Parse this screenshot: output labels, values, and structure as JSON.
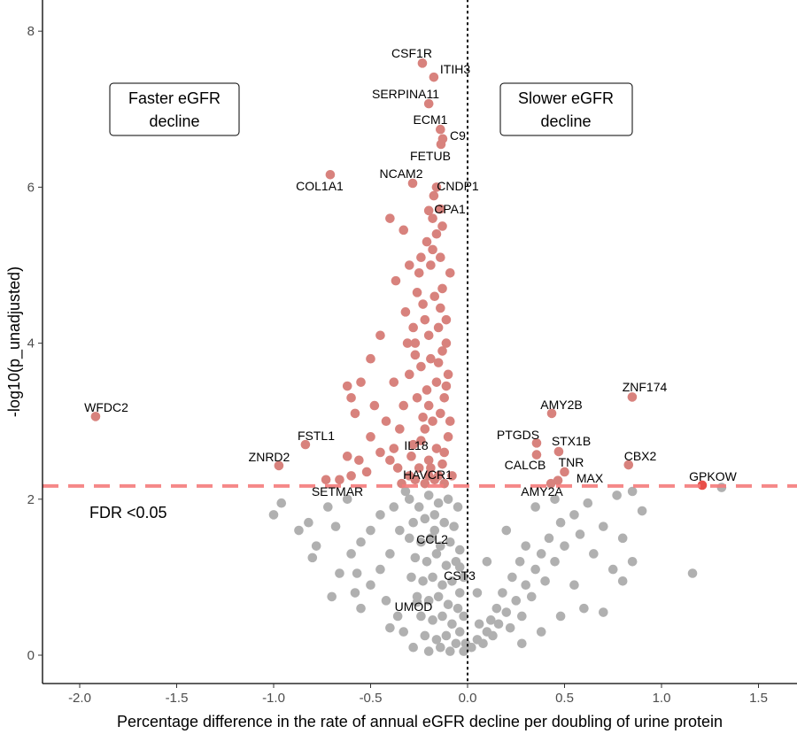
{
  "chart_data": {
    "type": "scatter",
    "title": "",
    "xlabel": "Percentage difference in the rate of annual eGFR decline per doubling of urine protein",
    "ylabel": "-log10(p_unadjusted)",
    "xlim": [
      -2.2,
      1.7
    ],
    "ylim": [
      -0.37,
      8.4
    ],
    "xticks": [
      -2.0,
      -1.5,
      -1.0,
      -0.5,
      0.0,
      0.5,
      1.0,
      1.5
    ],
    "xtick_labels": [
      "-2.0",
      "-1.5",
      "-1.0",
      "-0.5",
      "0.0",
      "0.5",
      "1.0",
      "1.5"
    ],
    "yticks": [
      0,
      2,
      4,
      6,
      8
    ],
    "ytick_labels": [
      "0",
      "2",
      "4",
      "6",
      "8"
    ],
    "grid": false,
    "threshold": {
      "y": 2.17,
      "label": "FDR <0.05",
      "color": "#f47c7c"
    },
    "annotations": {
      "left": [
        "Faster eGFR",
        "decline"
      ],
      "right": [
        "Slower eGFR",
        "decline"
      ]
    },
    "colors": {
      "significant": "#d8827d",
      "nonsignificant": "#b0b0b0",
      "highlight": "#e8504a"
    },
    "labeled_points": [
      {
        "gene": "CSF1R",
        "x": -0.233,
        "y": 7.59,
        "sig": true
      },
      {
        "gene": "ITIH3",
        "x": -0.174,
        "y": 7.41,
        "sig": true
      },
      {
        "gene": "SERPINA11",
        "x": -0.2,
        "y": 7.07,
        "sig": true
      },
      {
        "gene": "ECM1",
        "x": -0.14,
        "y": 6.74,
        "sig": true
      },
      {
        "gene": "C9",
        "x": -0.128,
        "y": 6.62,
        "sig": true
      },
      {
        "gene": "FETUB",
        "x": -0.137,
        "y": 6.55,
        "sig": true
      },
      {
        "gene": "COL1A1",
        "x": -0.708,
        "y": 6.16,
        "sig": true
      },
      {
        "gene": "NCAM2",
        "x": -0.283,
        "y": 6.05,
        "sig": true
      },
      {
        "gene": "CNDP1",
        "x": -0.174,
        "y": 5.89,
        "sig": true
      },
      {
        "gene": "CPA1",
        "x": -0.14,
        "y": 5.72,
        "sig": true
      },
      {
        "gene": "WFDC2",
        "x": -1.918,
        "y": 3.06,
        "sig": true
      },
      {
        "gene": "ZNF174",
        "x": 0.849,
        "y": 3.31,
        "sig": true
      },
      {
        "gene": "AMY2B",
        "x": 0.434,
        "y": 3.1,
        "sig": true
      },
      {
        "gene": "FSTL1",
        "x": -0.836,
        "y": 2.7,
        "sig": true
      },
      {
        "gene": "PTGDS",
        "x": 0.356,
        "y": 2.72,
        "sig": true
      },
      {
        "gene": "STX1B",
        "x": 0.47,
        "y": 2.61,
        "sig": true
      },
      {
        "gene": "CALCB",
        "x": 0.356,
        "y": 2.57,
        "sig": true
      },
      {
        "gene": "TNR",
        "x": 0.5,
        "y": 2.35,
        "sig": true
      },
      {
        "gene": "MAX",
        "x": 0.466,
        "y": 2.24,
        "sig": true
      },
      {
        "gene": "AMY2A",
        "x": 0.43,
        "y": 2.2,
        "sig": true
      },
      {
        "gene": "CBX2",
        "x": 0.83,
        "y": 2.44,
        "sig": true
      },
      {
        "gene": "GPKOW",
        "x": 1.21,
        "y": 2.18,
        "sig": true
      },
      {
        "gene": "ZNRD2",
        "x": -0.973,
        "y": 2.43,
        "sig": true
      },
      {
        "gene": "SETMAR",
        "x": -0.73,
        "y": 2.25,
        "sig": true
      },
      {
        "gene": "IL18",
        "x": -0.38,
        "y": 2.65,
        "sig": true
      },
      {
        "gene": "HAVCR1",
        "x": -0.2,
        "y": 2.3,
        "sig": true
      },
      {
        "gene": "CCL2",
        "x": -0.17,
        "y": 1.6,
        "sig": false
      },
      {
        "gene": "CST3",
        "x": -0.04,
        "y": 1.13,
        "sig": false
      },
      {
        "gene": "UMOD",
        "x": -0.26,
        "y": 0.68,
        "sig": false
      }
    ],
    "significant_points": [
      [
        -0.3,
        2.3
      ],
      [
        -0.25,
        2.4
      ],
      [
        -0.2,
        2.5
      ],
      [
        -0.15,
        2.3
      ],
      [
        -0.12,
        2.6
      ],
      [
        -0.28,
        2.7
      ],
      [
        -0.22,
        2.9
      ],
      [
        -0.18,
        3.0
      ],
      [
        -0.14,
        3.1
      ],
      [
        -0.1,
        2.8
      ],
      [
        -0.33,
        3.2
      ],
      [
        -0.26,
        3.3
      ],
      [
        -0.21,
        3.4
      ],
      [
        -0.16,
        3.5
      ],
      [
        -0.12,
        3.3
      ],
      [
        -0.3,
        3.6
      ],
      [
        -0.24,
        3.7
      ],
      [
        -0.19,
        3.8
      ],
      [
        -0.13,
        3.9
      ],
      [
        -0.1,
        3.6
      ],
      [
        -0.27,
        4.0
      ],
      [
        -0.2,
        4.1
      ],
      [
        -0.15,
        4.2
      ],
      [
        -0.11,
        4.3
      ],
      [
        -0.32,
        4.4
      ],
      [
        -0.23,
        4.5
      ],
      [
        -0.17,
        4.6
      ],
      [
        -0.13,
        4.7
      ],
      [
        -0.25,
        4.9
      ],
      [
        -0.19,
        5.0
      ],
      [
        -0.14,
        5.1
      ],
      [
        -0.21,
        5.3
      ],
      [
        -0.16,
        5.4
      ],
      [
        -0.18,
        5.6
      ],
      [
        -0.13,
        5.5
      ],
      [
        -0.4,
        5.6
      ],
      [
        -0.33,
        5.45
      ],
      [
        -0.2,
        5.7
      ],
      [
        -0.45,
        4.1
      ],
      [
        -0.5,
        3.8
      ],
      [
        -0.55,
        3.5
      ],
      [
        -0.6,
        3.3
      ],
      [
        -0.62,
        3.45
      ],
      [
        -0.58,
        3.1
      ],
      [
        -0.48,
        3.2
      ],
      [
        -0.42,
        3.0
      ],
      [
        -0.5,
        2.8
      ],
      [
        -0.45,
        2.6
      ],
      [
        -0.4,
        2.5
      ],
      [
        -0.52,
        2.35
      ],
      [
        -0.6,
        2.3
      ],
      [
        -0.35,
        2.9
      ],
      [
        -0.37,
        4.8
      ],
      [
        -0.3,
        5.0
      ],
      [
        -0.28,
        4.2
      ],
      [
        -0.38,
        3.5
      ],
      [
        -0.22,
        2.2
      ],
      [
        -0.17,
        2.25
      ],
      [
        -0.12,
        2.2
      ],
      [
        -0.08,
        2.3
      ],
      [
        -0.09,
        3.0
      ],
      [
        -0.11,
        4.0
      ],
      [
        -0.09,
        4.9
      ],
      [
        -0.29,
        2.55
      ],
      [
        -0.34,
        2.2
      ],
      [
        -0.56,
        2.5
      ],
      [
        -0.66,
        2.25
      ],
      [
        -0.62,
        2.55
      ],
      [
        -0.2,
        3.2
      ],
      [
        -0.24,
        2.75
      ],
      [
        -0.16,
        2.65
      ],
      [
        -0.27,
        3.85
      ],
      [
        -0.14,
        4.45
      ],
      [
        -0.18,
        5.2
      ],
      [
        -0.22,
        4.3
      ],
      [
        -0.26,
        4.65
      ],
      [
        -0.15,
        3.75
      ],
      [
        -0.11,
        3.45
      ],
      [
        -0.23,
        3.05
      ],
      [
        -0.19,
        2.4
      ],
      [
        -0.13,
        2.45
      ],
      [
        -0.27,
        2.25
      ],
      [
        -0.36,
        2.4
      ],
      [
        -0.31,
        4.0
      ],
      [
        -0.24,
        5.1
      ],
      [
        -0.16,
        6.0
      ]
    ],
    "nonsignificant_points": [
      [
        -0.3,
        2.0
      ],
      [
        -0.25,
        1.9
      ],
      [
        -0.2,
        2.05
      ],
      [
        -0.15,
        1.95
      ],
      [
        -0.1,
        2.0
      ],
      [
        -0.05,
        1.9
      ],
      [
        -0.28,
        1.7
      ],
      [
        -0.22,
        1.75
      ],
      [
        -0.17,
        1.8
      ],
      [
        -0.12,
        1.7
      ],
      [
        -0.07,
        1.65
      ],
      [
        -0.3,
        1.5
      ],
      [
        -0.24,
        1.45
      ],
      [
        -0.19,
        1.5
      ],
      [
        -0.14,
        1.4
      ],
      [
        -0.09,
        1.45
      ],
      [
        -0.04,
        1.35
      ],
      [
        -0.27,
        1.25
      ],
      [
        -0.21,
        1.2
      ],
      [
        -0.16,
        1.3
      ],
      [
        -0.11,
        1.15
      ],
      [
        -0.06,
        1.2
      ],
      [
        -0.02,
        1.0
      ],
      [
        -0.29,
        1.0
      ],
      [
        -0.23,
        0.95
      ],
      [
        -0.18,
        1.0
      ],
      [
        -0.13,
        0.9
      ],
      [
        -0.08,
        0.95
      ],
      [
        -0.04,
        0.8
      ],
      [
        -0.26,
        0.75
      ],
      [
        -0.2,
        0.7
      ],
      [
        -0.15,
        0.75
      ],
      [
        -0.1,
        0.65
      ],
      [
        -0.05,
        0.6
      ],
      [
        -0.02,
        0.5
      ],
      [
        -0.24,
        0.5
      ],
      [
        -0.18,
        0.45
      ],
      [
        -0.13,
        0.5
      ],
      [
        -0.08,
        0.4
      ],
      [
        -0.04,
        0.3
      ],
      [
        -0.01,
        0.15
      ],
      [
        -0.22,
        0.25
      ],
      [
        -0.16,
        0.2
      ],
      [
        -0.11,
        0.25
      ],
      [
        -0.06,
        0.15
      ],
      [
        -0.02,
        0.05
      ],
      [
        -0.2,
        0.05
      ],
      [
        -0.14,
        0.1
      ],
      [
        -0.09,
        0.05
      ],
      [
        -0.35,
        1.6
      ],
      [
        -0.4,
        1.3
      ],
      [
        -0.45,
        1.1
      ],
      [
        -0.5,
        0.9
      ],
      [
        -0.42,
        0.7
      ],
      [
        -0.36,
        0.5
      ],
      [
        -0.33,
        0.3
      ],
      [
        -0.38,
        1.9
      ],
      [
        -0.45,
        1.8
      ],
      [
        -0.5,
        1.6
      ],
      [
        -0.55,
        1.45
      ],
      [
        -0.6,
        1.3
      ],
      [
        -0.68,
        1.65
      ],
      [
        -0.72,
        1.9
      ],
      [
        -0.78,
        1.4
      ],
      [
        -0.58,
        0.8
      ],
      [
        -0.55,
        0.6
      ],
      [
        -0.57,
        1.05
      ],
      [
        -0.62,
        2.0
      ],
      [
        -1.0,
        1.8
      ],
      [
        -0.96,
        1.95
      ],
      [
        -0.87,
        1.6
      ],
      [
        -0.82,
        1.7
      ],
      [
        -0.8,
        1.25
      ],
      [
        -0.66,
        1.05
      ],
      [
        -0.7,
        0.75
      ],
      [
        -0.32,
        2.1
      ],
      [
        -0.4,
        0.35
      ],
      [
        -0.28,
        0.1
      ],
      [
        0.02,
        0.1
      ],
      [
        0.05,
        0.2
      ],
      [
        0.08,
        0.15
      ],
      [
        0.1,
        0.3
      ],
      [
        0.13,
        0.25
      ],
      [
        0.06,
        0.4
      ],
      [
        0.12,
        0.45
      ],
      [
        0.16,
        0.4
      ],
      [
        0.2,
        0.55
      ],
      [
        0.15,
        0.6
      ],
      [
        0.22,
        0.35
      ],
      [
        0.25,
        0.7
      ],
      [
        0.18,
        0.8
      ],
      [
        0.28,
        0.5
      ],
      [
        0.3,
        0.9
      ],
      [
        0.23,
        1.0
      ],
      [
        0.33,
        0.75
      ],
      [
        0.35,
        1.1
      ],
      [
        0.27,
        1.2
      ],
      [
        0.4,
        0.95
      ],
      [
        0.38,
        1.3
      ],
      [
        0.3,
        1.4
      ],
      [
        0.42,
        1.5
      ],
      [
        0.45,
        1.2
      ],
      [
        0.48,
        1.7
      ],
      [
        0.5,
        1.4
      ],
      [
        0.55,
        1.8
      ],
      [
        0.58,
        1.55
      ],
      [
        0.62,
        1.95
      ],
      [
        0.65,
        1.3
      ],
      [
        0.7,
        1.65
      ],
      [
        0.75,
        1.1
      ],
      [
        0.8,
        1.5
      ],
      [
        0.85,
        1.2
      ],
      [
        0.9,
        1.85
      ],
      [
        0.35,
        1.9
      ],
      [
        0.45,
        2.0
      ],
      [
        0.2,
        1.6
      ],
      [
        0.1,
        1.2
      ],
      [
        0.05,
        0.8
      ],
      [
        0.55,
        0.9
      ],
      [
        0.6,
        0.6
      ],
      [
        0.7,
        0.55
      ],
      [
        0.8,
        0.95
      ],
      [
        0.85,
        2.1
      ],
      [
        0.77,
        2.05
      ],
      [
        1.31,
        2.15
      ],
      [
        1.16,
        1.05
      ],
      [
        0.48,
        0.5
      ],
      [
        0.38,
        0.3
      ],
      [
        0.28,
        0.15
      ]
    ]
  }
}
